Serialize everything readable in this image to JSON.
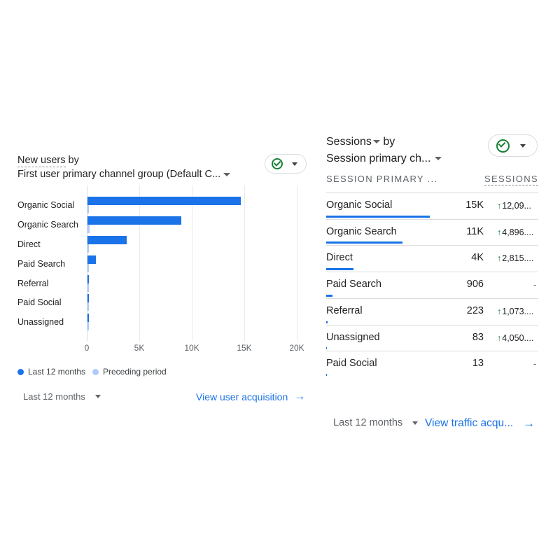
{
  "left_card": {
    "title_metric": "New users",
    "title_by": "by",
    "title_dimension": "First user primary channel group (Default C...",
    "categories": [
      "Organic Social",
      "Organic Search",
      "Direct",
      "Paid Search",
      "Referral",
      "Paid Social",
      "Unassigned"
    ],
    "x_ticks": [
      "0",
      "5K",
      "10K",
      "15K",
      "20K"
    ],
    "legend": {
      "current": "Last 12 months",
      "previous": "Preceding period"
    },
    "footer": {
      "range_label": "Last 12 months",
      "link_label": "View user acquisition",
      "link_arrow": "→"
    }
  },
  "chart_data": {
    "type": "bar",
    "orientation": "horizontal",
    "categories": [
      "Organic Social",
      "Organic Search",
      "Direct",
      "Paid Search",
      "Referral",
      "Paid Social",
      "Unassigned"
    ],
    "series": [
      {
        "name": "Last 12 months",
        "values": [
          14600,
          8900,
          3700,
          800,
          120,
          60,
          60
        ]
      },
      {
        "name": "Preceding period",
        "values": [
          80,
          180,
          30,
          10,
          10,
          10,
          10
        ]
      }
    ],
    "xlim": [
      0,
      20000
    ],
    "x_ticks": [
      "0",
      "5K",
      "10K",
      "15K",
      "20K"
    ],
    "grid": true,
    "legend_position": "bottom-left"
  },
  "right_card": {
    "title_metric": "Sessions",
    "title_by": "by",
    "title_dimension": "Session primary ch...",
    "col_dimension": "SESSION PRIMARY ...",
    "col_metric": "SESSIONS",
    "rows": [
      {
        "label": "Organic Social",
        "value": "15K",
        "change": "12,09...",
        "up": true,
        "share": 0.49
      },
      {
        "label": "Organic Search",
        "value": "11K",
        "change": "4,896....",
        "up": true,
        "share": 0.36
      },
      {
        "label": "Direct",
        "value": "4K",
        "change": "2,815....",
        "up": true,
        "share": 0.13
      },
      {
        "label": "Paid Search",
        "value": "906",
        "change": "-",
        "up": false,
        "share": 0.03
      },
      {
        "label": "Referral",
        "value": "223",
        "change": "1,073....",
        "up": true,
        "share": 0.008
      },
      {
        "label": "Unassigned",
        "value": "83",
        "change": "4,050....",
        "up": true,
        "share": 0.003
      },
      {
        "label": "Paid Social",
        "value": "13",
        "change": "-",
        "up": false,
        "share": 0.001
      }
    ],
    "footer": {
      "range_label": "Last 12 months",
      "link_label": "View traffic acqu...",
      "link_arrow": "→"
    }
  },
  "colors": {
    "accent": "#1a73e8",
    "previous_period": "#aecbfa",
    "positive": "#188038"
  },
  "icons": {
    "compare": "check-circle-icon",
    "dropdown": "caret-down-icon",
    "link": "arrow-right-icon"
  }
}
